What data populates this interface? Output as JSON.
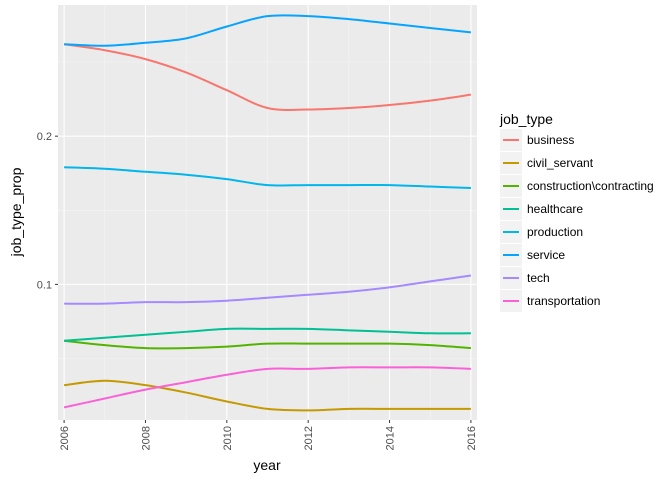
{
  "chart_data": {
    "type": "line",
    "title": "",
    "xlabel": "year",
    "ylabel": "job_type_prop",
    "xlim": [
      2005.85,
      2016.15
    ],
    "ylim": [
      0.0085,
      0.2885
    ],
    "x_ticks": [
      2006,
      2008,
      2010,
      2012,
      2014,
      2016
    ],
    "x_tick_labels": [
      "2006",
      "2008",
      "2010",
      "2012",
      "2014",
      "2016"
    ],
    "y_ticks": [
      0.1,
      0.2
    ],
    "y_tick_labels": [
      "0.1",
      "0.2"
    ],
    "grid": true,
    "legend_title": "job_type",
    "legend_position": "right",
    "x": [
      2006,
      2007,
      2008,
      2009,
      2010,
      2011,
      2012,
      2013,
      2014,
      2015,
      2016
    ],
    "series": [
      {
        "name": "business",
        "color": "#F8766D",
        "values": [
          0.262,
          0.258,
          0.252,
          0.243,
          0.231,
          0.219,
          0.218,
          0.219,
          0.221,
          0.224,
          0.228
        ]
      },
      {
        "name": "civil_servant",
        "color": "#C49A00",
        "values": [
          0.032,
          0.035,
          0.032,
          0.027,
          0.021,
          0.016,
          0.015,
          0.016,
          0.016,
          0.016,
          0.016
        ]
      },
      {
        "name": "construction\\contracting",
        "color": "#53B400",
        "values": [
          0.062,
          0.059,
          0.057,
          0.057,
          0.058,
          0.06,
          0.06,
          0.06,
          0.06,
          0.059,
          0.057
        ]
      },
      {
        "name": "healthcare",
        "color": "#00C094",
        "values": [
          0.062,
          0.064,
          0.066,
          0.068,
          0.07,
          0.07,
          0.07,
          0.069,
          0.068,
          0.067,
          0.067
        ]
      },
      {
        "name": "production",
        "color": "#00B6EB",
        "values": [
          0.179,
          0.178,
          0.176,
          0.174,
          0.171,
          0.167,
          0.167,
          0.167,
          0.167,
          0.166,
          0.165
        ]
      },
      {
        "name": "service",
        "color": "#06A4FF",
        "values": [
          0.262,
          0.261,
          0.263,
          0.266,
          0.274,
          0.281,
          0.281,
          0.279,
          0.276,
          0.273,
          0.27
        ]
      },
      {
        "name": "tech",
        "color": "#A58AFF",
        "values": [
          0.087,
          0.087,
          0.088,
          0.088,
          0.089,
          0.091,
          0.093,
          0.095,
          0.098,
          0.102,
          0.106
        ]
      },
      {
        "name": "transportation",
        "color": "#FB61D7",
        "values": [
          0.017,
          0.023,
          0.029,
          0.034,
          0.039,
          0.043,
          0.043,
          0.044,
          0.044,
          0.044,
          0.043
        ]
      }
    ]
  }
}
